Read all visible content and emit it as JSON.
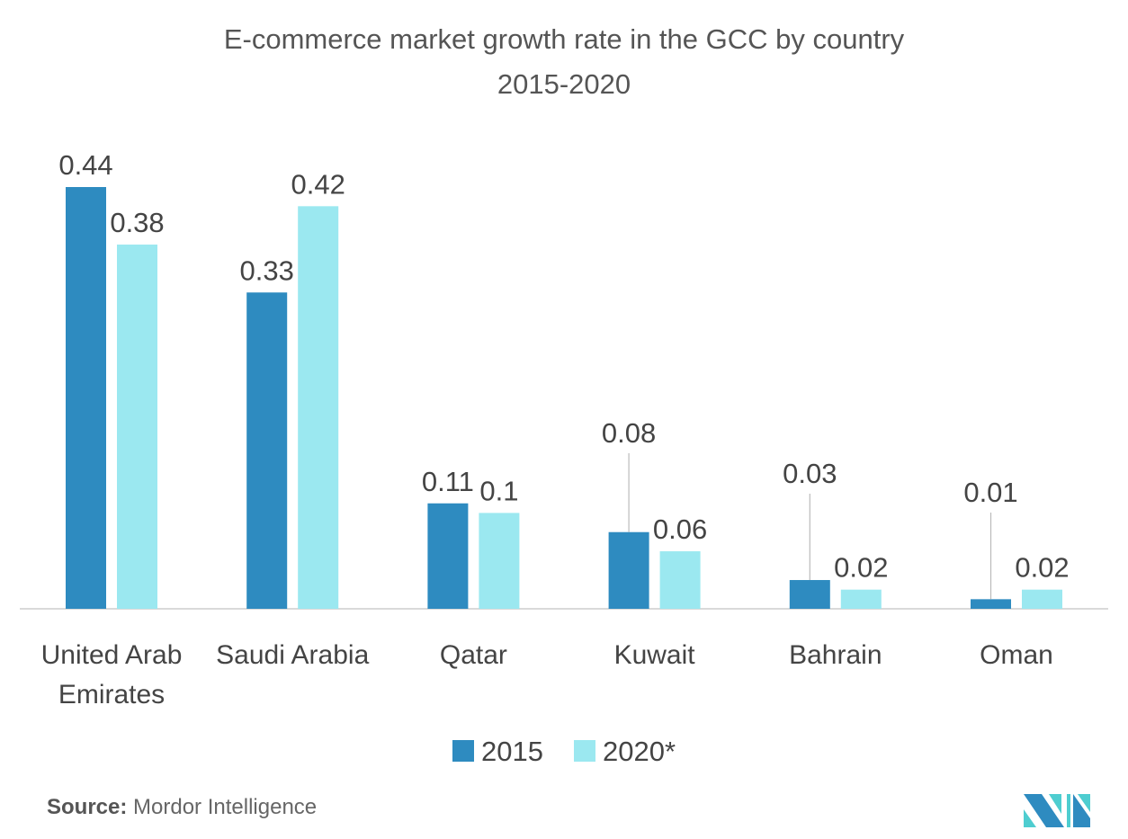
{
  "chart_data": {
    "type": "bar",
    "title": "E-commerce market growth rate in the GCC by country",
    "subtitle": "2015-2020",
    "categories": [
      [
        "United Arab",
        "Emirates"
      ],
      [
        "Saudi Arabia"
      ],
      [
        "Qatar"
      ],
      [
        "Kuwait"
      ],
      [
        "Bahrain"
      ],
      [
        "Oman"
      ]
    ],
    "series": [
      {
        "name": "2015",
        "color": "#2E8BC0",
        "values": [
          0.44,
          0.33,
          0.11,
          0.08,
          0.03,
          0.01
        ],
        "labels": [
          "0.44",
          "0.33",
          "0.11",
          "0.08",
          "0.03",
          "0.01"
        ]
      },
      {
        "name": "2020*",
        "color": "#9BE8F0",
        "values": [
          0.38,
          0.42,
          0.1,
          0.06,
          0.02,
          0.02
        ],
        "labels": [
          "0.38",
          "0.42",
          "0.1",
          "0.06",
          "0.02",
          "0.02"
        ]
      }
    ],
    "ylim": [
      0,
      0.44
    ],
    "grid": false,
    "legend": "bottom"
  },
  "source": {
    "label": "Source:",
    "text": "Mordor Intelligence"
  },
  "logo": {
    "colors": [
      "#2E8BC0",
      "#4ECDD0"
    ]
  }
}
